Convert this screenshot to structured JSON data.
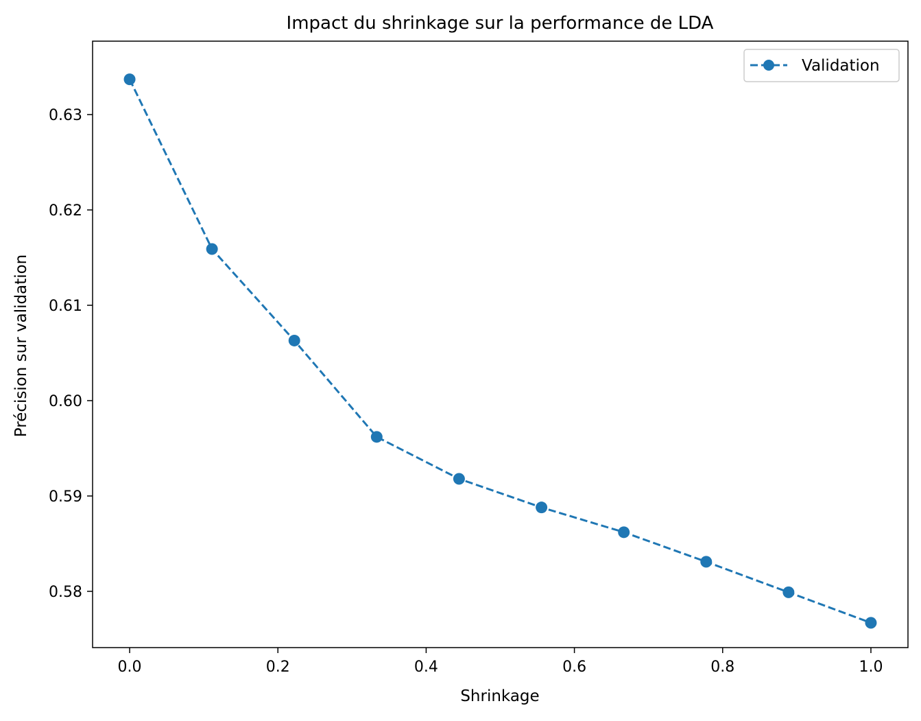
{
  "chart_data": {
    "type": "line",
    "title": "Impact du shrinkage sur la performance de LDA",
    "xlabel": "Shrinkage",
    "ylabel": "Précision sur validation",
    "xlim": [
      -0.05,
      1.05
    ],
    "ylim": [
      0.5741,
      0.6377
    ],
    "xticks": [
      0.0,
      0.2,
      0.4,
      0.6,
      0.8,
      1.0
    ],
    "xtick_labels": [
      "0.0",
      "0.2",
      "0.4",
      "0.6",
      "0.8",
      "1.0"
    ],
    "yticks": [
      0.58,
      0.59,
      0.6,
      0.61,
      0.62,
      0.63
    ],
    "ytick_labels": [
      "0.58",
      "0.59",
      "0.60",
      "0.61",
      "0.62",
      "0.63"
    ],
    "grid": false,
    "legend_position": "top-right",
    "series": [
      {
        "name": "Validation",
        "color": "#1f77b4",
        "line_style": "dashed",
        "marker": "circle",
        "x": [
          0.0,
          0.1111,
          0.2222,
          0.3333,
          0.4444,
          0.5556,
          0.6667,
          0.7778,
          0.8889,
          1.0
        ],
        "y": [
          0.6337,
          0.6159,
          0.6063,
          0.5962,
          0.5918,
          0.5888,
          0.5862,
          0.5831,
          0.5799,
          0.5767
        ]
      }
    ]
  }
}
